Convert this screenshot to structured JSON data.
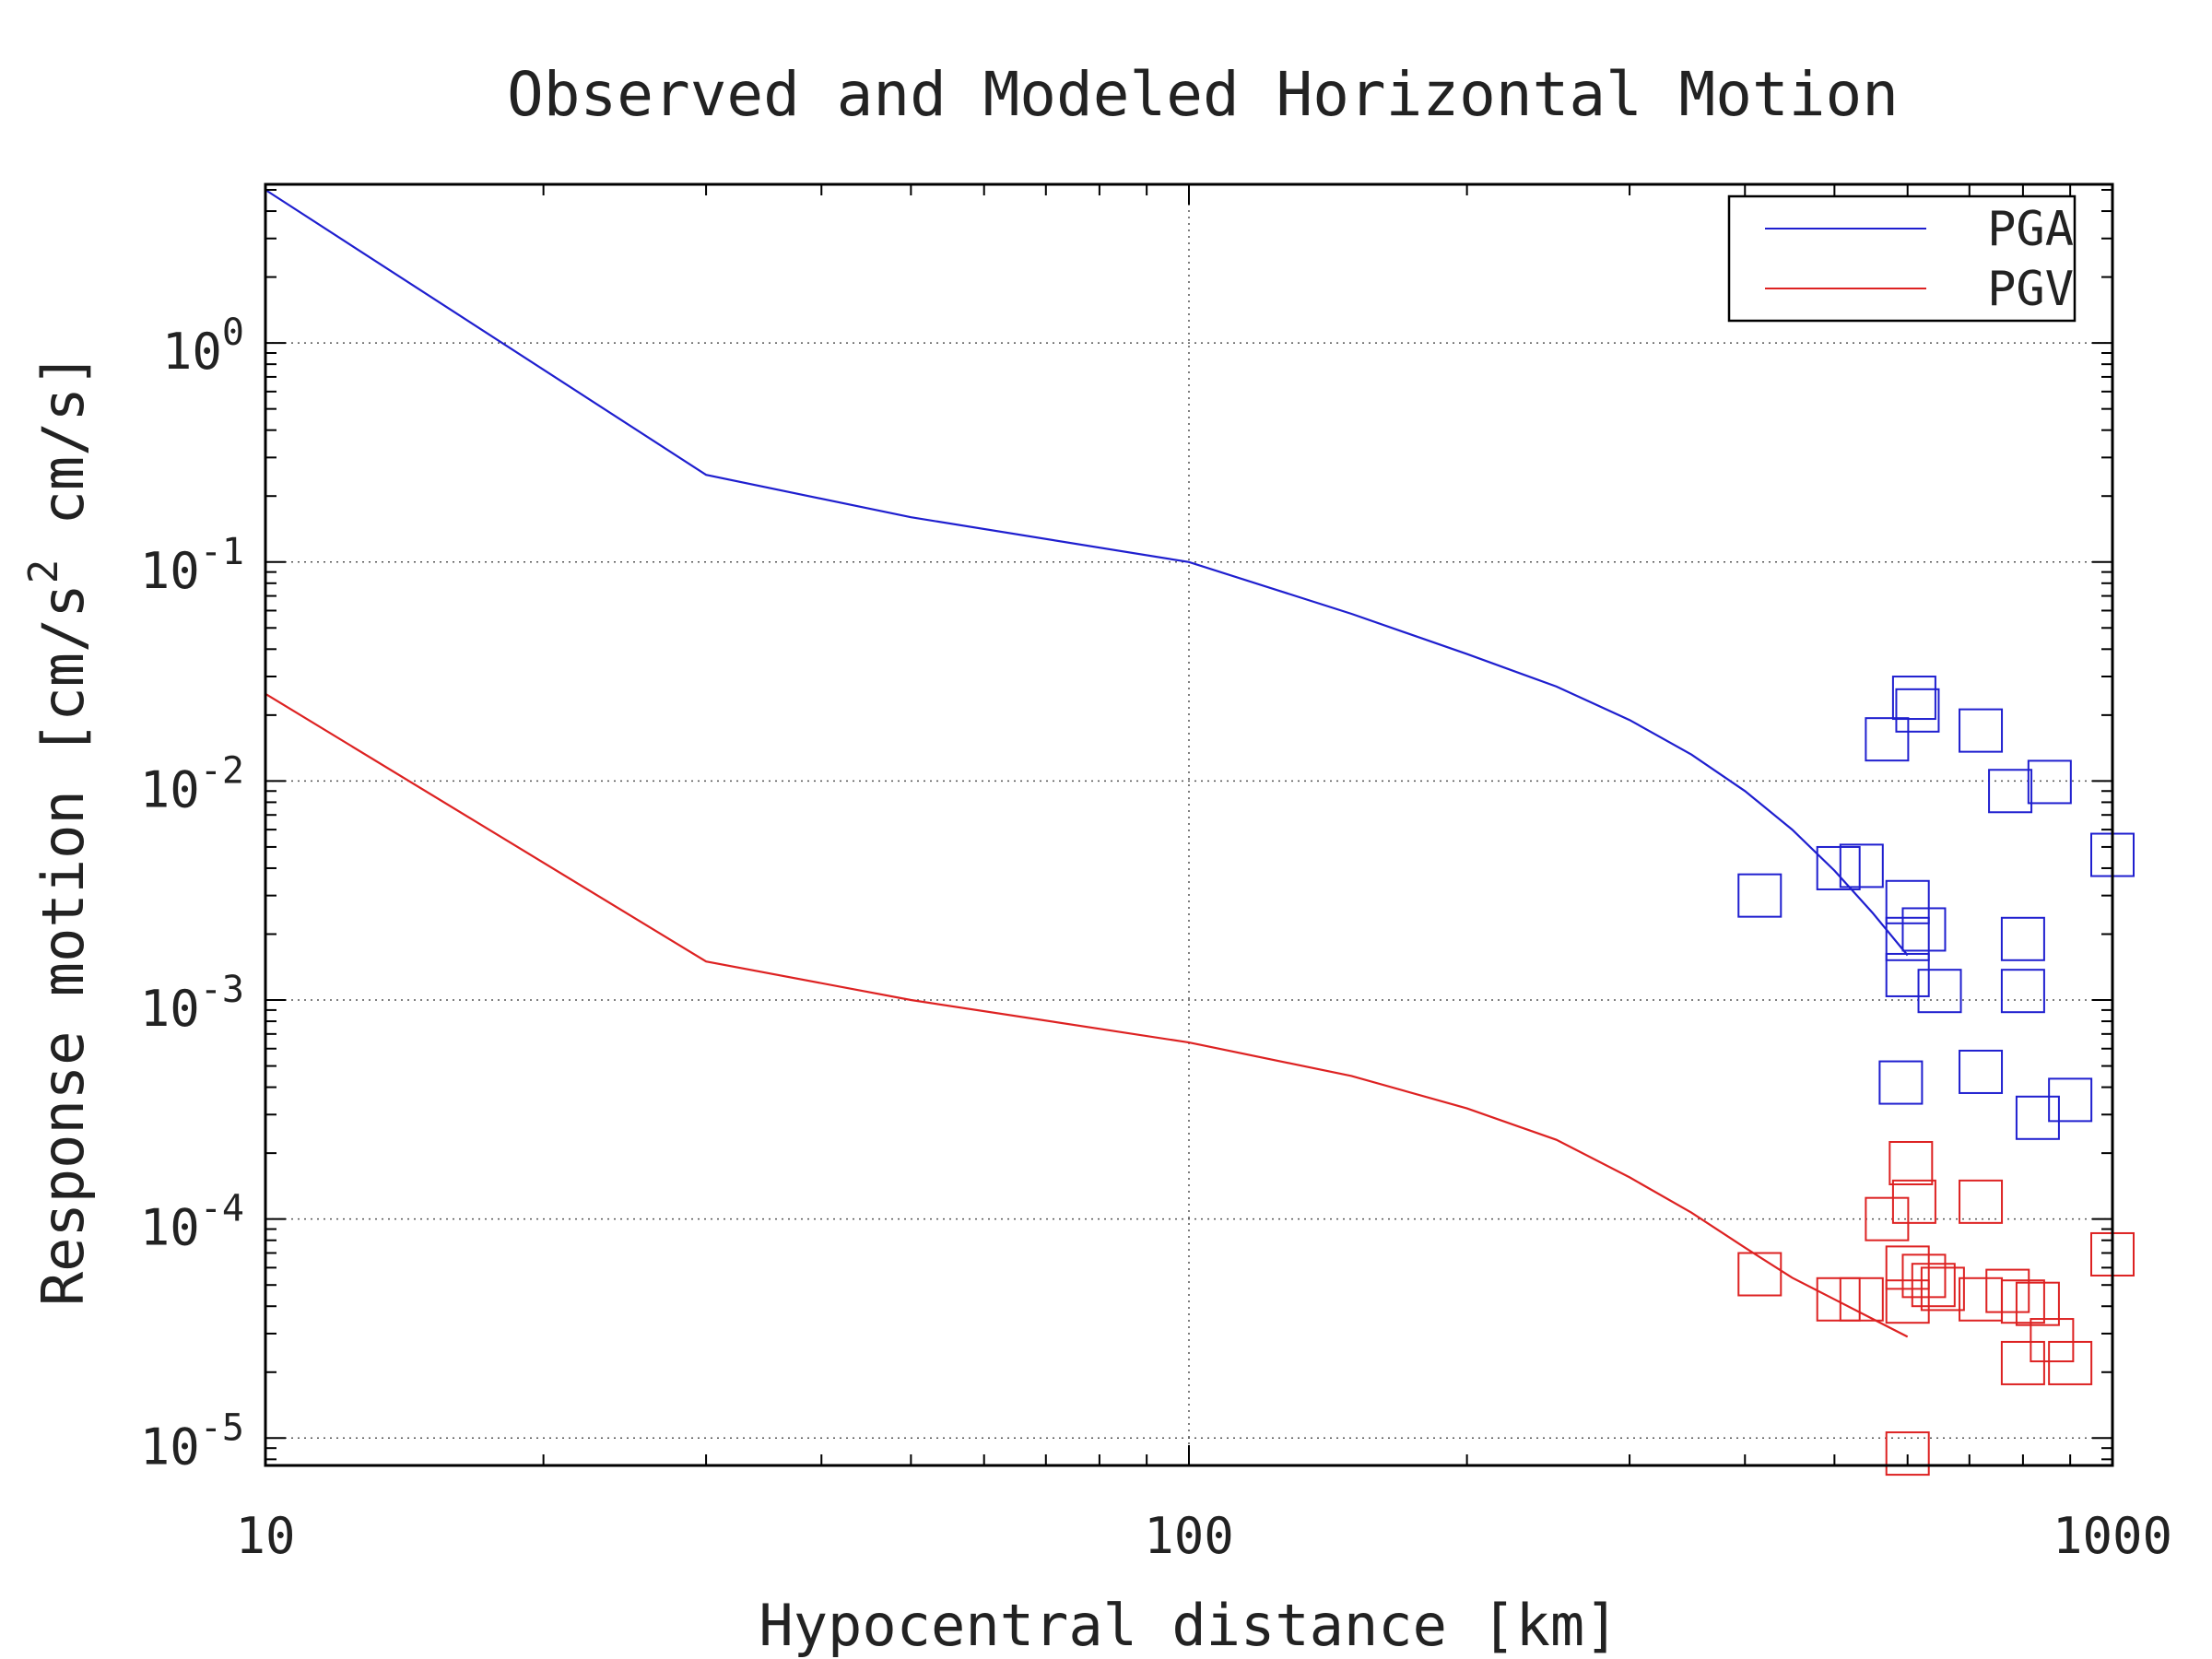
{
  "chart_data": {
    "type": "scatter",
    "title": "Observed and Modeled Horizontal Motion",
    "xlabel": "Hypocentral distance [km]",
    "ylabel_main": "Response motion [cm/s",
    "ylabel_sup": "2",
    "ylabel_tail": " cm/s]",
    "x_scale": "log",
    "y_scale": "log",
    "xlim": [
      10,
      1000
    ],
    "ylim": [
      7.5e-06,
      5.3
    ],
    "grid": true,
    "legend_position": "top-right",
    "x_ticks": [
      {
        "value": 10,
        "label": "10"
      },
      {
        "value": 100,
        "label": "100"
      },
      {
        "value": 1000,
        "label": "1000"
      }
    ],
    "y_ticks": [
      {
        "value": 1,
        "base": "10",
        "exp": "0"
      },
      {
        "value": 0.1,
        "base": "10",
        "exp": "-1"
      },
      {
        "value": 0.01,
        "base": "10",
        "exp": "-2"
      },
      {
        "value": 0.001,
        "base": "10",
        "exp": "-3"
      },
      {
        "value": 0.0001,
        "base": "10",
        "exp": "-4"
      },
      {
        "value": 1e-05,
        "base": "10",
        "exp": "-5"
      }
    ],
    "series": [
      {
        "name": "PGA",
        "color": "#1f1fcf",
        "model_line": [
          [
            10,
            5.0
          ],
          [
            30,
            0.25
          ],
          [
            50,
            0.16
          ],
          [
            100,
            0.1
          ],
          [
            150,
            0.058
          ],
          [
            200,
            0.038
          ],
          [
            250,
            0.027
          ],
          [
            300,
            0.019
          ],
          [
            350,
            0.0132
          ],
          [
            400,
            0.009
          ],
          [
            450,
            0.006
          ],
          [
            500,
            0.0039
          ],
          [
            550,
            0.0025
          ],
          [
            600,
            0.0016
          ]
        ],
        "observed": [
          [
            415,
            0.003
          ],
          [
            505,
            0.004
          ],
          [
            535,
            0.0041
          ],
          [
            570,
            0.0155
          ],
          [
            600,
            0.0028
          ],
          [
            610,
            0.024
          ],
          [
            615,
            0.021
          ],
          [
            600,
            0.0019
          ],
          [
            625,
            0.0021
          ],
          [
            600,
            0.0013
          ],
          [
            650,
            0.0011
          ],
          [
            590,
            0.00042
          ],
          [
            720,
            0.017
          ],
          [
            720,
            0.00047
          ],
          [
            775,
            0.009
          ],
          [
            800,
            0.0019
          ],
          [
            800,
            0.0011
          ],
          [
            855,
            0.0099
          ],
          [
            830,
            0.00029
          ],
          [
            900,
            0.00035
          ],
          [
            1000,
            0.0046
          ]
        ]
      },
      {
        "name": "PGV",
        "color": "#dd2222",
        "model_line": [
          [
            10,
            0.025
          ],
          [
            30,
            0.0015
          ],
          [
            50,
            0.001
          ],
          [
            100,
            0.00064
          ],
          [
            150,
            0.00045
          ],
          [
            200,
            0.00032
          ],
          [
            250,
            0.00023
          ],
          [
            300,
            0.000155
          ],
          [
            350,
            0.000107
          ],
          [
            400,
            7.4e-05
          ],
          [
            450,
            5.4e-05
          ],
          [
            500,
            4.3e-05
          ],
          [
            550,
            3.5e-05
          ],
          [
            600,
            2.9e-05
          ]
        ],
        "observed": [
          [
            415,
            5.6e-05
          ],
          [
            505,
            4.3e-05
          ],
          [
            535,
            4.3e-05
          ],
          [
            570,
            0.0001
          ],
          [
            605,
            0.00018
          ],
          [
            610,
            0.00012
          ],
          [
            600,
            6e-05
          ],
          [
            600,
            4.2e-05
          ],
          [
            625,
            5.5e-05
          ],
          [
            640,
            5e-05
          ],
          [
            655,
            4.8e-05
          ],
          [
            720,
            0.00012
          ],
          [
            720,
            4.3e-05
          ],
          [
            770,
            4.7e-05
          ],
          [
            800,
            4.2e-05
          ],
          [
            830,
            4.1e-05
          ],
          [
            800,
            2.2e-05
          ],
          [
            900,
            2.2e-05
          ],
          [
            860,
            2.8e-05
          ],
          [
            1000,
            6.9e-05
          ],
          [
            600,
            8.5e-06
          ]
        ]
      }
    ]
  }
}
